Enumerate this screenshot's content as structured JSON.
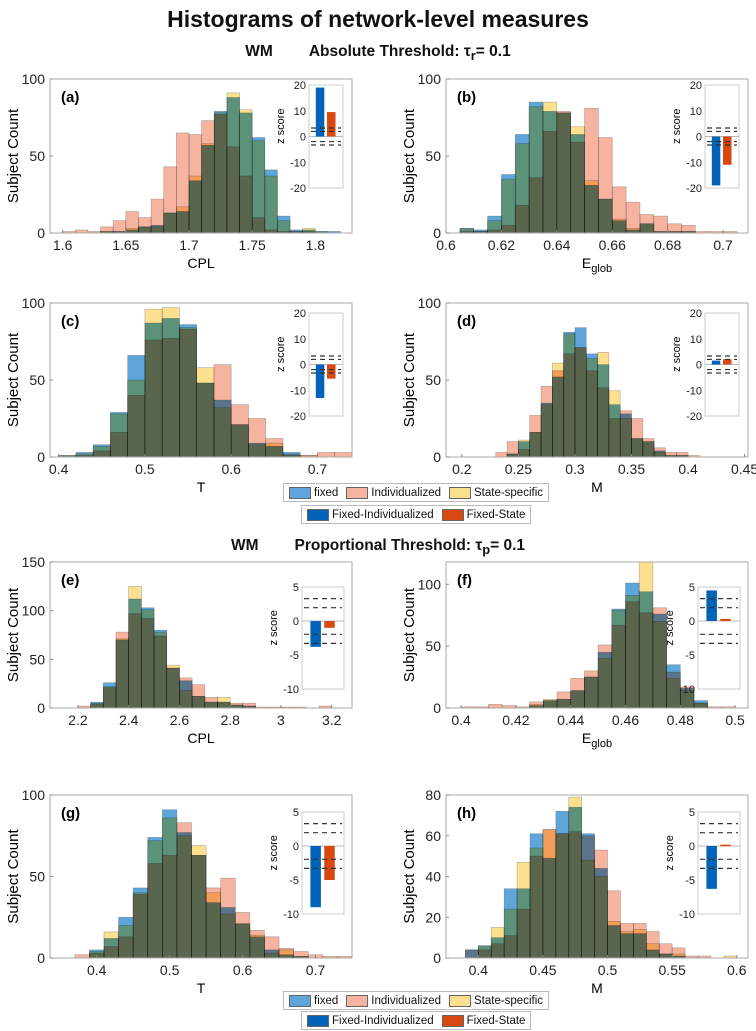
{
  "title": "Histograms of network-level measures",
  "sections": [
    {
      "group": "WM",
      "threshold_label": "Absolute Threshold: τ",
      "threshold_sub": "r",
      "threshold_value": "= 0.1"
    },
    {
      "group": "WM",
      "threshold_label": "Proportional Threshold: τ",
      "threshold_sub": "p",
      "threshold_value": "= 0.1"
    }
  ],
  "legend_hist": [
    {
      "name": "fixed",
      "color": "#5DA5DA"
    },
    {
      "name": "Individualized",
      "color": "#F6B3A0"
    },
    {
      "name": "State-specific",
      "color": "#FCE08F"
    }
  ],
  "legend_z": [
    {
      "name": "Fixed-Individualized",
      "color": "#0063B8"
    },
    {
      "name": "Fixed-State",
      "color": "#D94810"
    }
  ],
  "ylabel": "Subject Count",
  "inset_ylabel": "z score",
  "chart_data": [
    {
      "type": "histogram",
      "panel": "(a)",
      "xlabel": "CPL",
      "xlabel_sub": "",
      "bin_start": 1.6,
      "bin_width": 0.01,
      "xlim": [
        1.59,
        1.829
      ],
      "ylim": [
        0,
        100
      ],
      "xticks": [
        1.6,
        1.65,
        1.7,
        1.75,
        1.8
      ],
      "yticks": [
        0,
        50,
        100
      ],
      "series": [
        {
          "name": "fixed",
          "values": [
            0,
            0,
            0,
            1,
            1,
            2,
            4,
            5,
            13,
            14,
            34,
            57,
            79,
            88,
            78,
            62,
            41,
            11,
            2,
            2,
            1,
            1
          ]
        },
        {
          "name": "Individualized",
          "values": [
            1,
            2,
            1,
            4,
            8,
            14,
            10,
            22,
            43,
            65,
            64,
            73,
            77,
            56,
            37,
            10,
            2,
            1,
            1,
            1,
            0,
            0
          ]
        },
        {
          "name": "State-specific",
          "values": [
            0,
            0,
            0,
            1,
            1,
            3,
            4,
            4,
            13,
            17,
            37,
            58,
            78,
            91,
            80,
            60,
            37,
            8,
            1,
            3,
            1,
            0
          ]
        }
      ],
      "inset": {
        "ylim": [
          -20,
          20
        ],
        "yticks": [
          20,
          10,
          0,
          -10,
          -20
        ],
        "values": [
          19,
          9.5
        ],
        "thresholds": [
          3.29,
          1.96,
          -1.96,
          -3.29
        ]
      }
    },
    {
      "type": "histogram",
      "panel": "(b)",
      "xlabel": "E",
      "xlabel_sub": "glob",
      "bin_start": 0.605,
      "bin_width": 0.005,
      "xlim": [
        0.6,
        0.709
      ],
      "ylim": [
        0,
        100
      ],
      "xticks": [
        0.6,
        0.62,
        0.64,
        0.66,
        0.68,
        0.7
      ],
      "yticks": [
        0,
        50,
        100
      ],
      "series": [
        {
          "name": "fixed",
          "values": [
            3,
            2,
            11,
            38,
            64,
            85,
            79,
            78,
            64,
            31,
            22,
            8,
            2,
            6,
            1,
            1,
            1,
            0,
            0,
            0
          ]
        },
        {
          "name": "Individualized",
          "values": [
            1,
            1,
            2,
            5,
            18,
            36,
            66,
            79,
            59,
            81,
            62,
            30,
            20,
            12,
            11,
            6,
            5,
            1,
            1,
            1
          ]
        },
        {
          "name": "State-specific",
          "values": [
            3,
            1,
            8,
            35,
            58,
            82,
            85,
            78,
            69,
            34,
            22,
            9,
            3,
            6,
            1,
            1,
            1,
            0,
            0,
            0
          ]
        }
      ],
      "inset": {
        "ylim": [
          -20,
          20
        ],
        "yticks": [
          20,
          10,
          0,
          -10,
          -20
        ],
        "values": [
          -19,
          -11
        ],
        "thresholds": [
          3.29,
          1.96,
          -1.96,
          -3.29
        ]
      }
    },
    {
      "type": "histogram",
      "panel": "(c)",
      "xlabel": "T",
      "xlabel_sub": "",
      "bin_start": 0.4,
      "bin_width": 0.02,
      "xlim": [
        0.39,
        0.74
      ],
      "ylim": [
        0,
        100
      ],
      "xticks": [
        0.4,
        0.5,
        0.6,
        0.7
      ],
      "yticks": [
        0,
        50,
        100
      ],
      "series": [
        {
          "name": "fixed",
          "values": [
            1,
            3,
            8,
            29,
            66,
            87,
            90,
            86,
            48,
            37,
            21,
            9,
            7,
            3,
            0,
            0,
            0
          ]
        },
        {
          "name": "Individualized",
          "values": [
            0,
            1,
            4,
            16,
            40,
            76,
            77,
            83,
            48,
            60,
            34,
            25,
            12,
            2,
            1,
            3,
            3
          ]
        },
        {
          "name": "State-specific",
          "values": [
            1,
            2,
            7,
            28,
            50,
            96,
            97,
            84,
            58,
            32,
            21,
            8,
            9,
            1,
            1,
            0,
            0
          ]
        }
      ],
      "inset": {
        "ylim": [
          -20,
          20
        ],
        "yticks": [
          20,
          10,
          0,
          -10,
          -20
        ],
        "values": [
          -13,
          -5.5
        ],
        "thresholds": [
          3.29,
          1.96,
          -1.96,
          -3.29
        ]
      }
    },
    {
      "type": "histogram",
      "panel": "(d)",
      "xlabel": "M",
      "xlabel_sub": "",
      "bin_start": 0.23,
      "bin_width": 0.01,
      "xlim": [
        0.186,
        0.453
      ],
      "ylim": [
        0,
        100
      ],
      "xticks": [
        0.2,
        0.25,
        0.3,
        0.35,
        0.4,
        0.45
      ],
      "yticks": [
        0,
        50,
        100
      ],
      "series": [
        {
          "name": "fixed",
          "values": [
            0,
            2,
            10,
            16,
            35,
            52,
            81,
            84,
            67,
            60,
            34,
            28,
            12,
            10,
            4,
            1,
            1,
            0
          ]
        },
        {
          "name": "Individualized",
          "values": [
            3,
            10,
            5,
            27,
            46,
            56,
            67,
            71,
            56,
            45,
            25,
            30,
            25,
            12,
            6,
            3,
            3,
            1
          ]
        },
        {
          "name": "State-specific",
          "values": [
            0,
            2,
            11,
            16,
            34,
            61,
            80,
            71,
            64,
            68,
            43,
            25,
            12,
            10,
            3,
            1,
            1,
            0
          ]
        }
      ],
      "inset": {
        "ylim": [
          -20,
          20
        ],
        "yticks": [
          20,
          10,
          0,
          -10,
          -20
        ],
        "values": [
          1.5,
          2
        ],
        "thresholds": [
          3.29,
          1.96,
          -1.96,
          -3.29
        ]
      }
    },
    {
      "type": "histogram",
      "panel": "(e)",
      "xlabel": "CPL",
      "xlabel_sub": "",
      "bin_start": 2.2,
      "bin_width": 0.05,
      "xlim": [
        2.09,
        3.28
      ],
      "ylim": [
        0,
        150
      ],
      "xticks": [
        2.2,
        2.4,
        2.6,
        2.8,
        3,
        3.2
      ],
      "yticks": [
        0,
        50,
        100,
        150
      ],
      "series": [
        {
          "name": "fixed",
          "values": [
            0,
            6,
            26,
            70,
            112,
            103,
            80,
            41,
            28,
            12,
            6,
            6,
            3,
            2,
            0,
            0,
            0,
            0,
            0,
            0
          ]
        },
        {
          "name": "Individualized",
          "values": [
            2,
            4,
            21,
            78,
            97,
            92,
            74,
            41,
            31,
            24,
            11,
            6,
            5,
            5,
            1,
            1,
            1,
            1,
            0,
            2
          ]
        },
        {
          "name": "State-specific",
          "values": [
            0,
            5,
            22,
            71,
            125,
            101,
            78,
            44,
            18,
            12,
            6,
            11,
            3,
            2,
            0,
            0,
            0,
            0,
            0,
            0
          ]
        }
      ],
      "inset": {
        "ylim": [
          -10,
          5
        ],
        "yticks": [
          5,
          0,
          -5,
          -10
        ],
        "values": [
          -3.8,
          -1
        ],
        "thresholds": [
          3.29,
          1.96,
          -1.96,
          -3.29
        ]
      }
    },
    {
      "type": "histogram",
      "panel": "(f)",
      "xlabel": "E",
      "xlabel_sub": "glob",
      "bin_start": 0.4,
      "bin_width": 0.005,
      "xlim": [
        0.3945,
        0.5047
      ],
      "ylim": [
        0,
        118
      ],
      "xticks": [
        0.4,
        0.42,
        0.44,
        0.46,
        0.48,
        0.5
      ],
      "yticks": [
        0,
        50,
        100
      ],
      "series": [
        {
          "name": "fixed",
          "values": [
            0,
            0,
            0,
            0,
            0,
            2,
            6,
            7,
            14,
            25,
            45,
            80,
            101,
            94,
            76,
            35,
            16,
            6,
            0,
            0
          ]
        },
        {
          "name": "Individualized",
          "values": [
            1,
            1,
            3,
            2,
            1,
            5,
            6,
            13,
            24,
            30,
            51,
            67,
            86,
            77,
            81,
            29,
            17,
            4,
            1,
            1
          ]
        },
        {
          "name": "State-specific",
          "values": [
            0,
            0,
            0,
            0,
            0,
            3,
            7,
            7,
            14,
            25,
            40,
            79,
            91,
            118,
            70,
            24,
            14,
            4,
            0,
            0
          ]
        }
      ],
      "inset": {
        "ylim": [
          -10,
          5
        ],
        "yticks": [
          5,
          0,
          -5,
          -10
        ],
        "values": [
          4.5,
          0.3
        ],
        "thresholds": [
          3.29,
          1.96,
          -1.96,
          -3.29
        ]
      }
    },
    {
      "type": "histogram",
      "panel": "(g)",
      "xlabel": "T",
      "xlabel_sub": "",
      "bin_start": 0.37,
      "bin_width": 0.02,
      "xlim": [
        0.336,
        0.75
      ],
      "ylim": [
        0,
        100
      ],
      "xticks": [
        0.4,
        0.5,
        0.6,
        0.7
      ],
      "yticks": [
        0,
        50,
        100
      ],
      "series": [
        {
          "name": "fixed",
          "values": [
            0,
            5,
            12,
            25,
            43,
            74,
            91,
            77,
            63,
            34,
            31,
            21,
            13,
            5,
            2,
            1,
            0,
            0,
            0
          ]
        },
        {
          "name": "Individualized",
          "values": [
            2,
            3,
            7,
            13,
            39,
            58,
            63,
            83,
            63,
            43,
            49,
            28,
            17,
            13,
            6,
            4,
            2,
            1,
            1
          ]
        },
        {
          "name": "State-specific",
          "values": [
            0,
            4,
            16,
            20,
            40,
            72,
            86,
            75,
            69,
            40,
            27,
            21,
            14,
            3,
            5,
            1,
            0,
            0,
            0
          ]
        }
      ],
      "inset": {
        "ylim": [
          -10,
          5
        ],
        "yticks": [
          5,
          0,
          -5,
          -10
        ],
        "values": [
          -9,
          -5
        ],
        "thresholds": [
          3.29,
          1.96,
          -1.96,
          -3.29
        ]
      }
    },
    {
      "type": "histogram",
      "panel": "(h)",
      "xlabel": "M",
      "xlabel_sub": "",
      "bin_start": 0.39,
      "bin_width": 0.01,
      "xlim": [
        0.375,
        0.6087
      ],
      "ylim": [
        0,
        80
      ],
      "xticks": [
        0.4,
        0.45,
        0.5,
        0.55,
        0.6
      ],
      "yticks": [
        0,
        20,
        40,
        60,
        80
      ],
      "series": [
        {
          "name": "fixed",
          "values": [
            4,
            6,
            10,
            34,
            34,
            61,
            49,
            72,
            74,
            61,
            44,
            16,
            12,
            12,
            4,
            2,
            1,
            0,
            0,
            0,
            0
          ]
        },
        {
          "name": "Individualized",
          "values": [
            4,
            4,
            7,
            11,
            24,
            50,
            63,
            61,
            62,
            60,
            53,
            33,
            17,
            17,
            13,
            7,
            5,
            1,
            1,
            0,
            0
          ]
        },
        {
          "name": "State-specific",
          "values": [
            0,
            6,
            15,
            24,
            47,
            54,
            63,
            61,
            79,
            48,
            40,
            18,
            13,
            14,
            7,
            2,
            2,
            0,
            0,
            0,
            1
          ]
        }
      ],
      "inset": {
        "ylim": [
          -10,
          5
        ],
        "yticks": [
          5,
          0,
          -5,
          -10
        ],
        "values": [
          -6.3,
          0.2
        ],
        "thresholds": [
          3.29,
          1.96,
          -1.96,
          -3.29
        ]
      }
    }
  ]
}
